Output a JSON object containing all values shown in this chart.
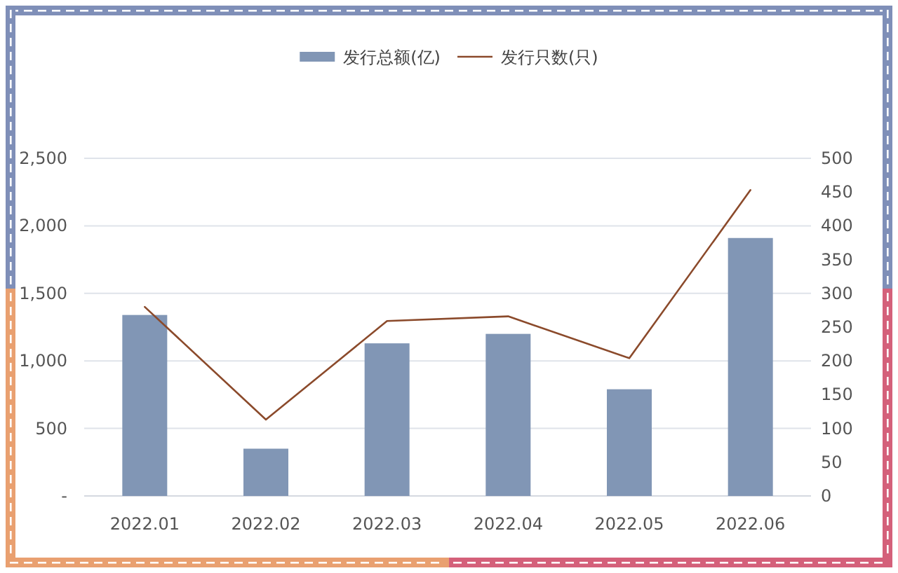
{
  "chart_data": {
    "type": "bar",
    "categories": [
      "2022.01",
      "2022.02",
      "2022.03",
      "2022.04",
      "2022.05",
      "2022.06"
    ],
    "series": [
      {
        "name": "发行总额(亿)",
        "color": "#8196b5",
        "values": [
          1340,
          350,
          1130,
          1200,
          790,
          1910
        ]
      },
      {
        "name": "发行只数(只)",
        "type": "line",
        "axis": "y2",
        "color": "#8b4a2b",
        "values": [
          280,
          113,
          259,
          266,
          204,
          453
        ]
      }
    ],
    "ylim": [
      0,
      2500
    ],
    "yticks": [
      {
        "value": 0,
        "label": "-"
      },
      500,
      {
        "value": 1000,
        "label": "1,000"
      },
      {
        "value": 1500,
        "label": "1,500"
      },
      {
        "value": 2000,
        "label": "2,000"
      },
      {
        "value": 2500,
        "label": "2,500"
      }
    ],
    "y2lim": [
      0,
      500
    ],
    "y2ticks": [
      0,
      50,
      100,
      150,
      200,
      250,
      300,
      350,
      400,
      450,
      500
    ],
    "grid": "y",
    "legend": "top"
  }
}
